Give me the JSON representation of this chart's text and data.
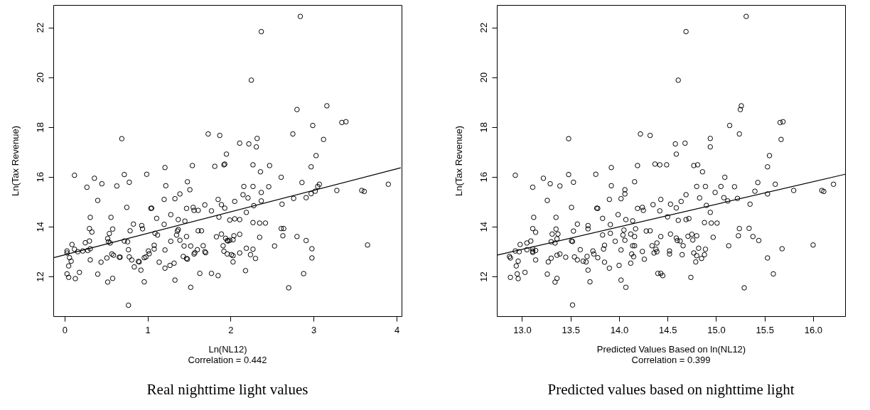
{
  "chart_data": [
    {
      "type": "scatter",
      "xlabel": "Ln(NL12)",
      "ylabel": "Ln(Tax Revenue)",
      "annotations": [
        "Correlation = 0.442",
        "Real nighttime light values"
      ],
      "xlim": [
        -0.135,
        4.06
      ],
      "xticks": [
        0,
        1,
        2,
        3,
        4
      ],
      "ylim": [
        10.4,
        22.9
      ],
      "yticks": [
        12,
        14,
        16,
        18,
        20,
        22
      ],
      "series": [
        {
          "marker": "circle",
          "color": "#000000",
          "x": [
            0.69,
            1.73,
            1.87,
            1.95,
            1.93,
            1.92,
            1.81,
            1.54,
            1.21,
            0.12,
            0.36,
            0.72,
            0.99,
            0.45,
            0.27,
            0.63,
            0.78,
            1.22,
            1.48,
            1.51,
            1.39,
            1.33,
            1.2,
            0.4,
            1.85,
            1.89,
            1.93,
            0.75,
            1.05,
            1.04,
            1.55,
            1.61,
            1.56,
            1.69,
            1.47,
            1.77,
            1.28,
            1.11,
            0.31,
            0.56,
            1.86,
            1.99,
            1.37,
            1.45,
            0.83,
            1.2,
            0.93,
            0.94,
            0.3,
            0.33,
            0.58,
            0.54,
            0.52,
            0.53,
            0.55,
            0.79,
            1.09,
            1.12,
            1.37,
            1.35,
            1.36,
            1.61,
            1.65,
            1.89,
            1.83,
            1.94,
            1.97,
            1.96,
            1.99,
            0.25,
            0.3,
            0.09,
            0.72,
            0.76,
            1.47,
            1.39,
            1.28,
            1.44,
            1.52,
            1.67,
            1.91,
            1.08,
            1.01,
            1.08,
            0.77,
            1.21,
            0.31,
            0.28,
            0.22,
            0.16,
            0.12,
            0.03,
            0.03,
            0.06,
            0.08,
            0.05,
            0.03,
            0.05,
            0.13,
            0.18,
            0.31,
            0.44,
            0.51,
            0.57,
            0.59,
            0.66,
            0.67,
            0.78,
            0.81,
            0.89,
            0.9,
            0.96,
            0.98,
            1.02,
            0.84,
            0.92,
            1.14,
            1.21,
            1.27,
            1.32,
            1.43,
            1.47,
            1.48,
            1.57,
            1.56,
            1.6,
            1.69,
            1.7,
            1.92,
            1.96,
            2.01,
            0.4,
            0.52,
            0.58,
            0.96,
            1.33,
            1.52,
            1.63,
            1.77,
            1.85,
            0.77,
            2.84,
            2.37,
            2.25,
            3.16,
            2.8,
            2.99,
            3.34,
            3.39,
            2.75,
            3.12,
            2.11,
            2.22,
            2.32,
            2.31,
            3.03,
            2.27,
            2.47,
            2.36,
            2.97,
            2.61,
            2.86,
            3.07,
            3.05,
            3.02,
            2.97,
            2.91,
            2.76,
            3.28,
            3.58,
            3.61,
            3.9,
            2.16,
            2.27,
            2.46,
            2.37,
            2.15,
            2.21,
            2.37,
            2.05,
            2.28,
            2.62,
            2.19,
            2.05,
            2.11,
            2.27,
            2.35,
            2.42,
            2.61,
            2.64,
            2.63,
            2.8,
            2.91,
            2.35,
            2.11,
            2.04,
            2.03,
            2.53,
            2.19,
            2.27,
            2.24,
            2.3,
            2.11,
            2.03,
            2.03,
            2.98,
            2.98,
            3.65,
            2.18,
            2.88,
            2.7
          ],
          "values": [
            17.53,
            17.72,
            17.66,
            16.91,
            16.51,
            16.48,
            16.42,
            16.45,
            16.37,
            16.06,
            15.94,
            16.09,
            16.1,
            15.72,
            15.58,
            15.63,
            15.78,
            15.64,
            15.8,
            15.48,
            15.31,
            15.12,
            15.09,
            15.05,
            15.09,
            14.88,
            14.74,
            14.77,
            14.74,
            14.73,
            14.77,
            14.65,
            14.65,
            14.87,
            14.73,
            14.63,
            14.48,
            14.33,
            14.37,
            14.37,
            14.38,
            14.26,
            14.28,
            14.22,
            14.1,
            14.09,
            14.04,
            13.91,
            13.92,
            13.78,
            13.9,
            13.72,
            13.52,
            13.39,
            13.34,
            13.83,
            13.73,
            13.66,
            13.88,
            13.66,
            13.82,
            13.83,
            13.83,
            13.7,
            13.59,
            13.53,
            13.42,
            13.44,
            13.45,
            13.35,
            13.42,
            13.28,
            13.42,
            13.39,
            13.6,
            13.45,
            13.41,
            13.22,
            13.22,
            13.23,
            13.23,
            13.25,
            13.02,
            13.1,
            13.07,
            13.06,
            13.11,
            13.04,
            13.02,
            12.99,
            13.09,
            13.02,
            12.94,
            12.75,
            12.61,
            12.42,
            12.1,
            11.96,
            11.91,
            12.16,
            12.66,
            12.57,
            12.74,
            12.9,
            12.85,
            12.77,
            12.77,
            12.78,
            12.66,
            12.6,
            12.58,
            12.75,
            12.78,
            12.91,
            12.38,
            12.25,
            12.57,
            12.33,
            12.44,
            12.53,
            12.8,
            12.72,
            12.69,
            12.95,
            12.9,
            13.07,
            12.99,
            12.95,
            13.01,
            12.9,
            12.87,
            12.09,
            11.77,
            11.92,
            11.78,
            11.85,
            11.56,
            12.12,
            12.12,
            12.03,
            10.84,
            22.44,
            21.83,
            19.88,
            18.85,
            18.7,
            18.06,
            18.18,
            18.21,
            17.72,
            17.5,
            17.35,
            17.32,
            17.54,
            17.2,
            16.85,
            16.48,
            16.45,
            16.2,
            16.4,
            15.98,
            15.77,
            15.7,
            15.61,
            15.42,
            15.32,
            15.16,
            15.13,
            15.45,
            15.45,
            15.41,
            15.7,
            15.61,
            15.61,
            15.6,
            15.37,
            15.28,
            15.15,
            15.03,
            15.01,
            14.84,
            14.9,
            14.57,
            14.31,
            14.28,
            14.16,
            14.14,
            14.14,
            13.92,
            13.92,
            13.63,
            13.6,
            13.44,
            13.57,
            13.69,
            13.63,
            13.47,
            13.22,
            13.13,
            13.09,
            12.87,
            12.72,
            12.94,
            12.83,
            12.58,
            13.11,
            12.74,
            13.26,
            12.23,
            12.11,
            11.54
          ]
        },
        {
          "type": "line",
          "line_style": "solid",
          "color": "#000000",
          "x": [
            -0.13,
            4.05
          ],
          "values": [
            12.75,
            16.36
          ]
        }
      ]
    },
    {
      "type": "scatter",
      "xlabel": "Predicted Values Based on ln(NL12)",
      "ylabel": "Ln(Tax Revenue)",
      "annotations": [
        "Correlation = 0.399",
        "Predicted values based on nighttime light"
      ],
      "xlim": [
        12.74,
        16.33
      ],
      "xticks": [
        {
          "value": 13,
          "label": "13.0"
        },
        13.5,
        {
          "value": 14,
          "label": "14.0"
        },
        14.5,
        {
          "value": 15,
          "label": "15.0"
        },
        15.5,
        {
          "value": 16,
          "label": "16.0"
        }
      ],
      "ylim": [
        10.4,
        22.9
      ],
      "yticks": [
        12,
        14,
        16,
        18,
        20,
        22
      ],
      "series": [
        {
          "marker": "circle",
          "color": "#000000",
          "x": [
            14.22,
            14.32,
            13.48,
            13.92,
            14.19,
            14.37,
            14.42,
            14.49,
            12.93,
            13.22,
            13.48,
            13.76,
            13.11,
            13.29,
            13.39,
            13.53,
            13.92,
            14.16,
            14.06,
            14.06,
            14.02,
            13.9,
            13.26,
            14.43,
            13.51,
            13.77,
            13.78,
            14.19,
            14.24,
            14.25,
            14.35,
            14.42,
            13.12,
            13.35,
            13.83,
            13.91,
            13.99,
            14.07,
            14.14,
            13.57,
            13.53,
            13.68,
            13.68,
            13.11,
            13.14,
            13.35,
            13.31,
            13.37,
            13.36,
            13.3,
            13.34,
            13.51,
            13.52,
            13.83,
            13.91,
            13.85,
            13.84,
            14.05,
            14.04,
            14.06,
            13.96,
            14.12,
            14.16,
            14.17,
            14.28,
            14.32,
            14.43,
            14.39,
            14.34,
            14.16,
            14.14,
            14.36,
            14.38,
            14.39,
            14.24,
            14.02,
            14.13,
            14.15,
            14.12,
            14.26,
            14.0,
            13.78,
            13.73,
            13.74,
            13.67,
            13.6,
            13.57,
            13.63,
            13.66,
            13.68,
            13.7,
            13.9,
            13.85,
            14.02,
            14.07,
            14.4,
            14.43,
            14.45,
            13.05,
            13.09,
            12.98,
            13.05,
            13.11,
            13.11,
            13.14,
            13.11,
            12.93,
            12.97,
            12.87,
            12.88,
            12.96,
            12.94,
            13.03,
            12.95,
            12.88,
            12.96,
            13.14,
            13.27,
            13.3,
            13.26,
            13.36,
            13.34,
            13.36,
            13.39,
            13.45,
            13.54,
            13.52,
            15.31,
            14.69,
            14.61,
            15.26,
            15.25,
            15.14,
            15.66,
            15.69,
            15.24,
            15.67,
            14.94,
            14.94,
            14.58,
            14.68,
            14.59,
            15.55,
            15.53,
            14.77,
            14.81,
            14.86,
            15.09,
            15.43,
            15.61,
            15.4,
            15.53,
            15.8,
            16.09,
            16.11,
            16.21,
            14.8,
            14.89,
            15.05,
            15.19,
            14.99,
            15.08,
            15.12,
            15.22,
            14.83,
            14.69,
            14.64,
            14.59,
            14.53,
            14.9,
            15.35,
            14.94,
            14.5,
            14.61,
            14.69,
            14.72,
            14.88,
            14.95,
            15.01,
            15.24,
            15.34,
            15.23,
            15.38,
            15.44,
            14.97,
            14.53,
            14.59,
            14.6,
            14.63,
            14.71,
            14.75,
            14.8,
            14.76,
            14.66,
            15.13,
            14.82,
            14.89,
            14.77,
            14.8,
            14.85,
            14.88,
            14.79,
            14.65,
            14.52,
            14.52,
            15.68,
            15.53,
            16.0,
            14.74,
            15.59,
            15.29
          ],
          "values": [
            17.72,
            17.66,
            17.53,
            16.37,
            16.45,
            16.51,
            16.48,
            16.48,
            16.06,
            15.94,
            16.09,
            16.1,
            15.58,
            15.72,
            15.63,
            15.78,
            15.64,
            15.8,
            15.48,
            15.31,
            15.12,
            15.09,
            15.05,
            15.09,
            14.77,
            14.74,
            14.73,
            14.73,
            14.77,
            14.65,
            14.88,
            14.63,
            14.37,
            14.37,
            14.33,
            14.08,
            14.48,
            14.28,
            14.23,
            14.1,
            13.82,
            14.04,
            13.91,
            13.92,
            13.77,
            13.9,
            13.7,
            13.7,
            13.51,
            13.39,
            13.34,
            13.42,
            13.4,
            13.66,
            13.73,
            13.25,
            13.1,
            13.86,
            13.66,
            13.45,
            13.41,
            13.7,
            13.6,
            13.91,
            13.82,
            13.83,
            13.6,
            13.34,
            13.23,
            13.23,
            13.23,
            12.94,
            13.09,
            12.99,
            13.0,
            13.06,
            12.9,
            12.79,
            12.53,
            12.69,
            12.44,
            12.75,
            13.02,
            12.9,
            12.8,
            13.07,
            12.66,
            12.61,
            12.58,
            12.25,
            11.78,
            12.33,
            12.57,
            11.85,
            11.56,
            12.12,
            12.12,
            12.03,
            13.34,
            13.42,
            13.28,
            13.07,
            13.1,
            13.01,
            13.04,
            12.96,
            13.02,
            12.99,
            12.8,
            12.74,
            12.61,
            12.42,
            12.16,
            12.1,
            11.96,
            11.91,
            12.66,
            12.58,
            12.73,
            12.09,
            11.92,
            11.77,
            12.85,
            12.9,
            12.77,
            12.78,
            10.85,
            22.44,
            21.83,
            19.88,
            18.85,
            18.7,
            18.06,
            18.18,
            18.21,
            17.72,
            17.5,
            17.54,
            17.2,
            17.32,
            17.35,
            16.91,
            16.85,
            16.4,
            16.45,
            16.48,
            16.2,
            15.98,
            15.77,
            15.7,
            15.42,
            15.31,
            15.45,
            15.45,
            15.41,
            15.7,
            15.61,
            15.61,
            15.61,
            15.6,
            15.37,
            15.16,
            15.03,
            15.13,
            15.15,
            15.28,
            15.01,
            14.75,
            14.9,
            14.85,
            14.9,
            14.57,
            14.39,
            14.25,
            14.28,
            14.32,
            14.16,
            14.14,
            14.14,
            13.92,
            13.93,
            13.63,
            13.6,
            13.44,
            13.57,
            13.7,
            13.54,
            13.44,
            13.42,
            13.61,
            13.69,
            13.63,
            13.46,
            13.23,
            13.23,
            13.13,
            13.09,
            12.94,
            12.83,
            12.72,
            12.87,
            12.58,
            12.87,
            13.02,
            12.9,
            13.11,
            12.74,
            13.26,
            11.96,
            12.1,
            11.54
          ]
        },
        {
          "type": "line",
          "line_style": "solid",
          "color": "#000000",
          "x": [
            12.74,
            16.33
          ],
          "values": [
            12.85,
            16.1
          ]
        }
      ]
    }
  ]
}
